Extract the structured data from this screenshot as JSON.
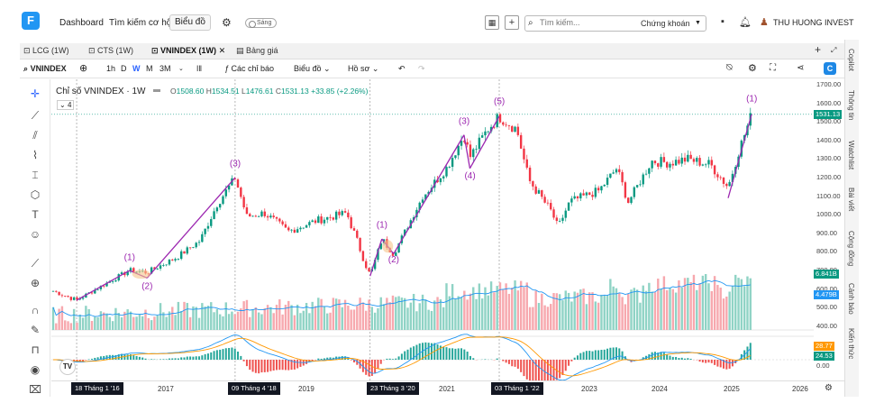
{
  "nav": {
    "dashboard": "Dashboard",
    "opportunity": "Tìm kiếm cơ hội",
    "chart": "Biểu đồ",
    "theme": "Sáng",
    "search_placeholder": "Tìm kiếm...",
    "market": "Chứng khoán",
    "user": "THU HUONG INVEST"
  },
  "tabs": [
    "LCG (1W)",
    "CTS (1W)",
    "VNINDEX (1W)",
    "Bảng giá"
  ],
  "toolbar": {
    "symbol": "VNINDEX",
    "intervals": [
      "1h",
      "D",
      "W",
      "M",
      "3M"
    ],
    "active_interval": "W",
    "alerts": "Các chỉ báo",
    "chart_type": "Biểu đồ",
    "profile": "Hồ sơ"
  },
  "legend": {
    "title": "Chỉ số VNINDEX · 1W",
    "o_label": "O",
    "o": "1508.60",
    "h_label": "H",
    "h": "1534.51",
    "l_label": "L",
    "l": "1476.61",
    "c_label": "C",
    "c": "1531.13",
    "change": "+33.85 (+2.26%)",
    "badge": "4"
  },
  "right_tabs": [
    "Copilot",
    "Thông tin",
    "Watchlist",
    "Bài viết",
    "Cộng đồng",
    "Cảnh báo",
    "Kiến thức"
  ],
  "price_axis": [
    "1700.00",
    "1600.00",
    "1500.00",
    "1400.00",
    "1300.00",
    "1200.00",
    "1100.00",
    "1000.00",
    "900.00",
    "800.00",
    "700.00",
    "600.00",
    "500.00",
    "400.00"
  ],
  "price_tags": {
    "last": "1531.13",
    "vol": "6.841B",
    "vol_ma": "4.479B",
    "macd1": "28.77",
    "macd2": "24.53",
    "zero": "0.00"
  },
  "time_axis": {
    "labels": [
      "2017",
      "2019",
      "2021",
      "2023",
      "2024",
      "2025",
      "2026"
    ],
    "boxes": [
      "18 Tháng 1 '16",
      "09 Tháng 4 '18",
      "23 Tháng 3 '20",
      "03 Tháng 1 '22"
    ]
  },
  "wave_labels": [
    "(1)",
    "(2)",
    "(3)",
    "(1)",
    "(2)",
    "(3)",
    "(4)",
    "(5)",
    "(1)"
  ],
  "colors": {
    "up": "#089981",
    "down": "#f23645",
    "wave": "#9c27b0",
    "accent": "#2962ff",
    "vol_ma": "#2196f3",
    "macd_orange": "#ff9800"
  },
  "chart_data": {
    "type": "candlestick",
    "title": "Chỉ số VNINDEX · 1W",
    "ylim": [
      380,
      1700
    ],
    "close_path": [
      [
        "2015-09",
        580
      ],
      [
        "2016-01",
        530
      ],
      [
        "2016-06",
        620
      ],
      [
        "2016-10",
        690
      ],
      [
        "2017-01",
        680
      ],
      [
        "2017-06",
        760
      ],
      [
        "2017-10",
        850
      ],
      [
        "2018-01",
        1050
      ],
      [
        "2018-04",
        1190
      ],
      [
        "2018-06",
        980
      ],
      [
        "2018-09",
        1000
      ],
      [
        "2019-01",
        900
      ],
      [
        "2019-06",
        960
      ],
      [
        "2019-11",
        1000
      ],
      [
        "2020-03",
        660
      ],
      [
        "2020-05",
        860
      ],
      [
        "2020-07",
        780
      ],
      [
        "2020-12",
        1090
      ],
      [
        "2021-04",
        1240
      ],
      [
        "2021-07",
        1420
      ],
      [
        "2021-08",
        1300
      ],
      [
        "2021-11",
        1450
      ],
      [
        "2022-01",
        1520
      ],
      [
        "2022-04",
        1450
      ],
      [
        "2022-06",
        1180
      ],
      [
        "2022-10",
        1000
      ],
      [
        "2022-11",
        920
      ],
      [
        "2023-01",
        1060
      ],
      [
        "2023-06",
        1120
      ],
      [
        "2023-09",
        1240
      ],
      [
        "2023-11",
        1060
      ],
      [
        "2024-03",
        1280
      ],
      [
        "2024-06",
        1270
      ],
      [
        "2024-09",
        1290
      ],
      [
        "2025-01",
        1260
      ],
      [
        "2025-04",
        1140
      ],
      [
        "2025-06",
        1350
      ],
      [
        "2025-08",
        1531
      ]
    ]
  }
}
